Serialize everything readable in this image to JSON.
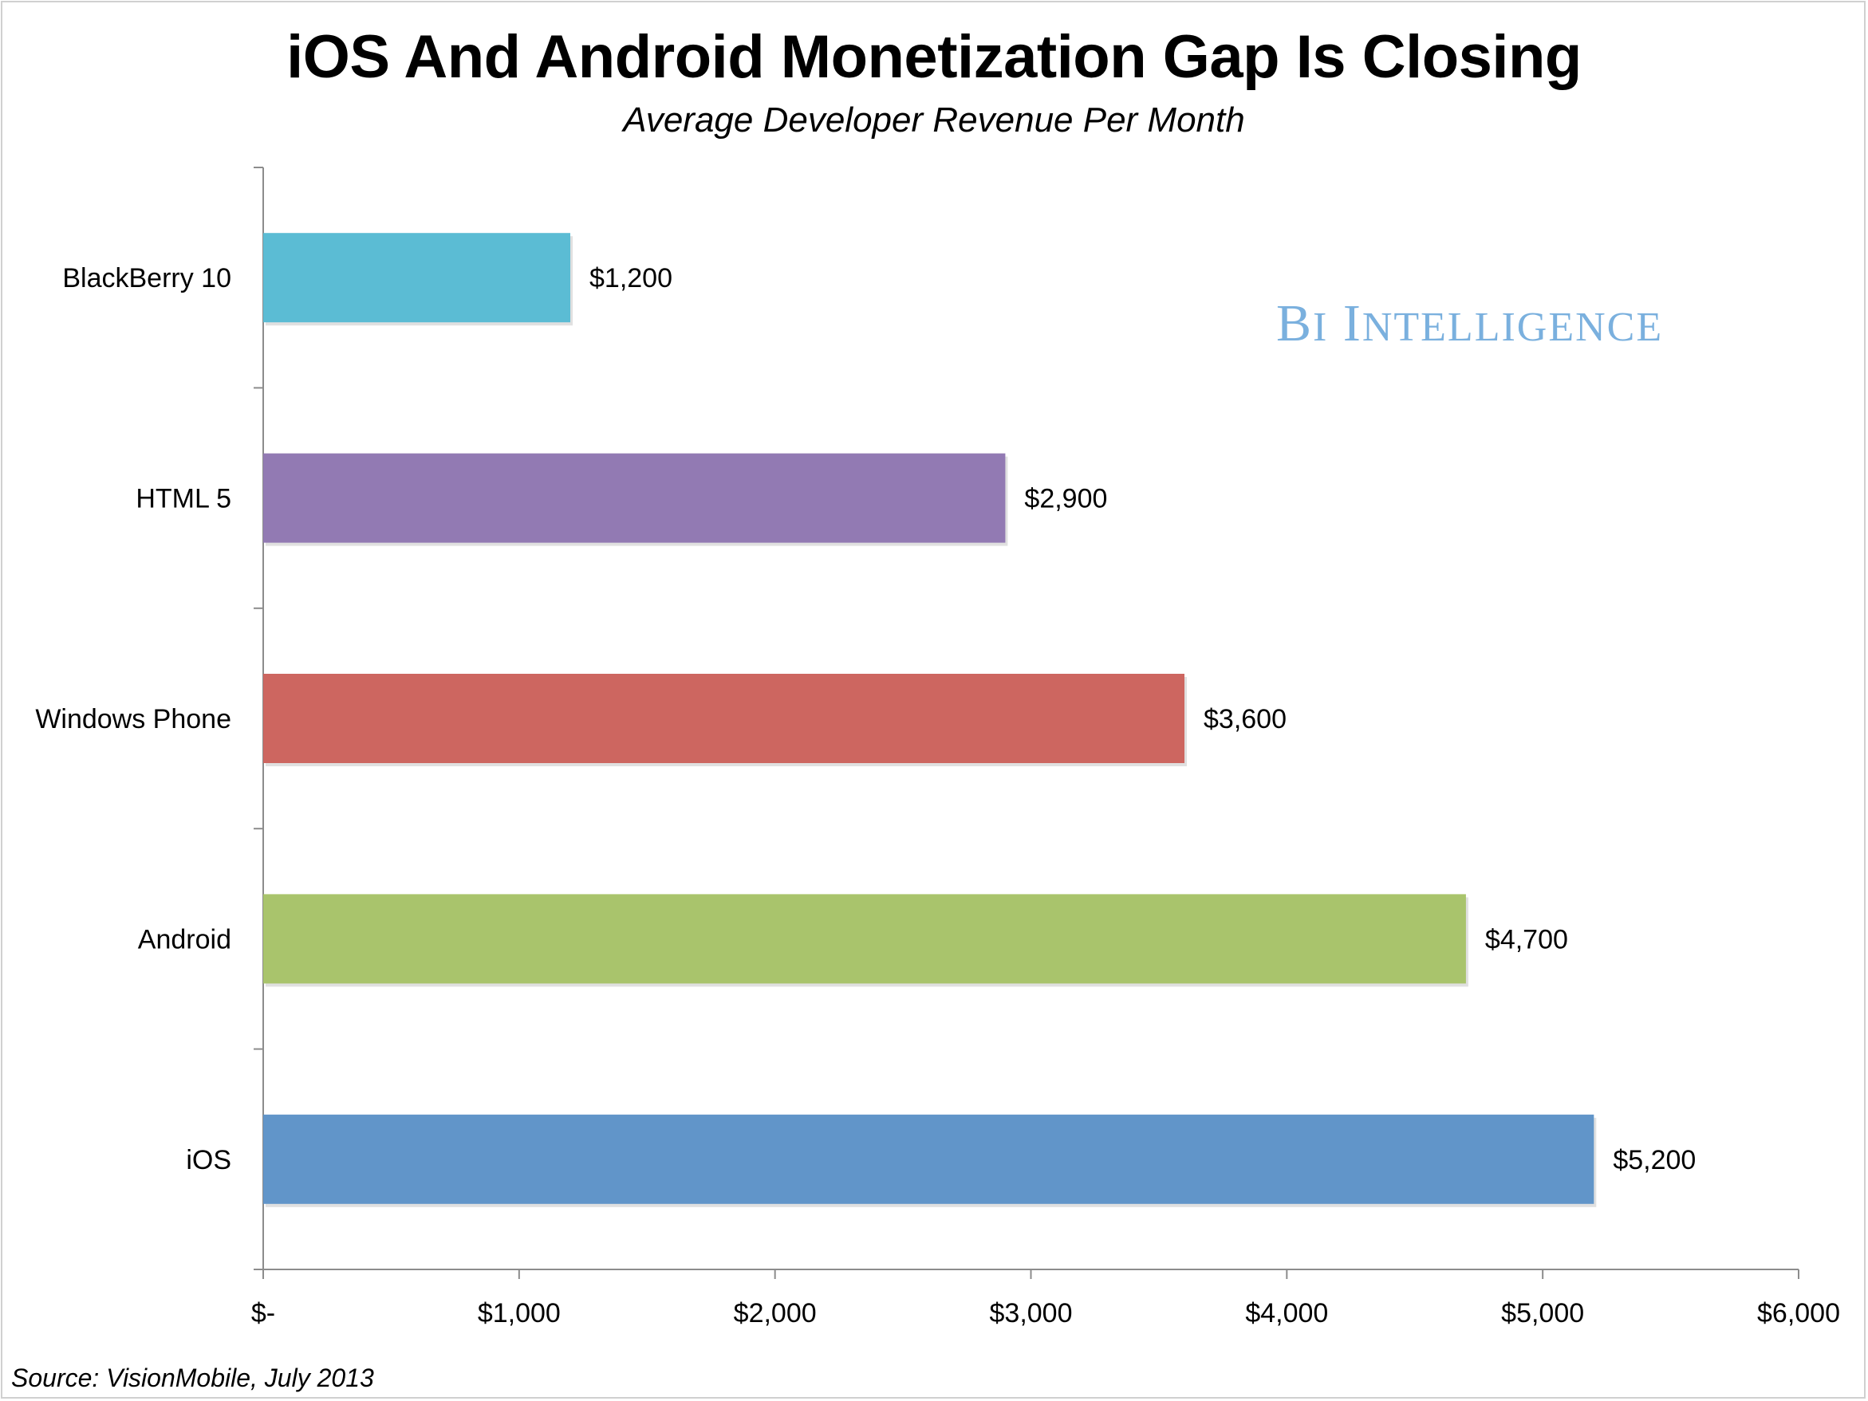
{
  "chart_data": {
    "type": "bar",
    "orientation": "horizontal",
    "title": "iOS And Android Monetization Gap Is Closing",
    "subtitle": "Average Developer Revenue Per Month",
    "source": "Source: VisionMobile, July 2013",
    "watermark": "BI Intelligence",
    "categories": [
      "BlackBerry 10",
      "HTML 5",
      "Windows Phone",
      "Android",
      "iOS"
    ],
    "values": [
      1200,
      2900,
      3600,
      4700,
      5200
    ],
    "value_labels": [
      "$1,200",
      "$2,900",
      "$3,600",
      "$4,700",
      "$5,200"
    ],
    "colors": [
      "#5bbcd4",
      "#927ab3",
      "#cd6660",
      "#a9c46c",
      "#6195c9"
    ],
    "xlim": [
      0,
      6000
    ],
    "xticks": [
      0,
      1000,
      2000,
      3000,
      4000,
      5000,
      6000
    ],
    "xtick_labels": [
      "$-",
      "$1,000",
      "$2,000",
      "$3,000",
      "$4,000",
      "$5,000",
      "$6,000"
    ],
    "grid": false,
    "legend": "none"
  }
}
